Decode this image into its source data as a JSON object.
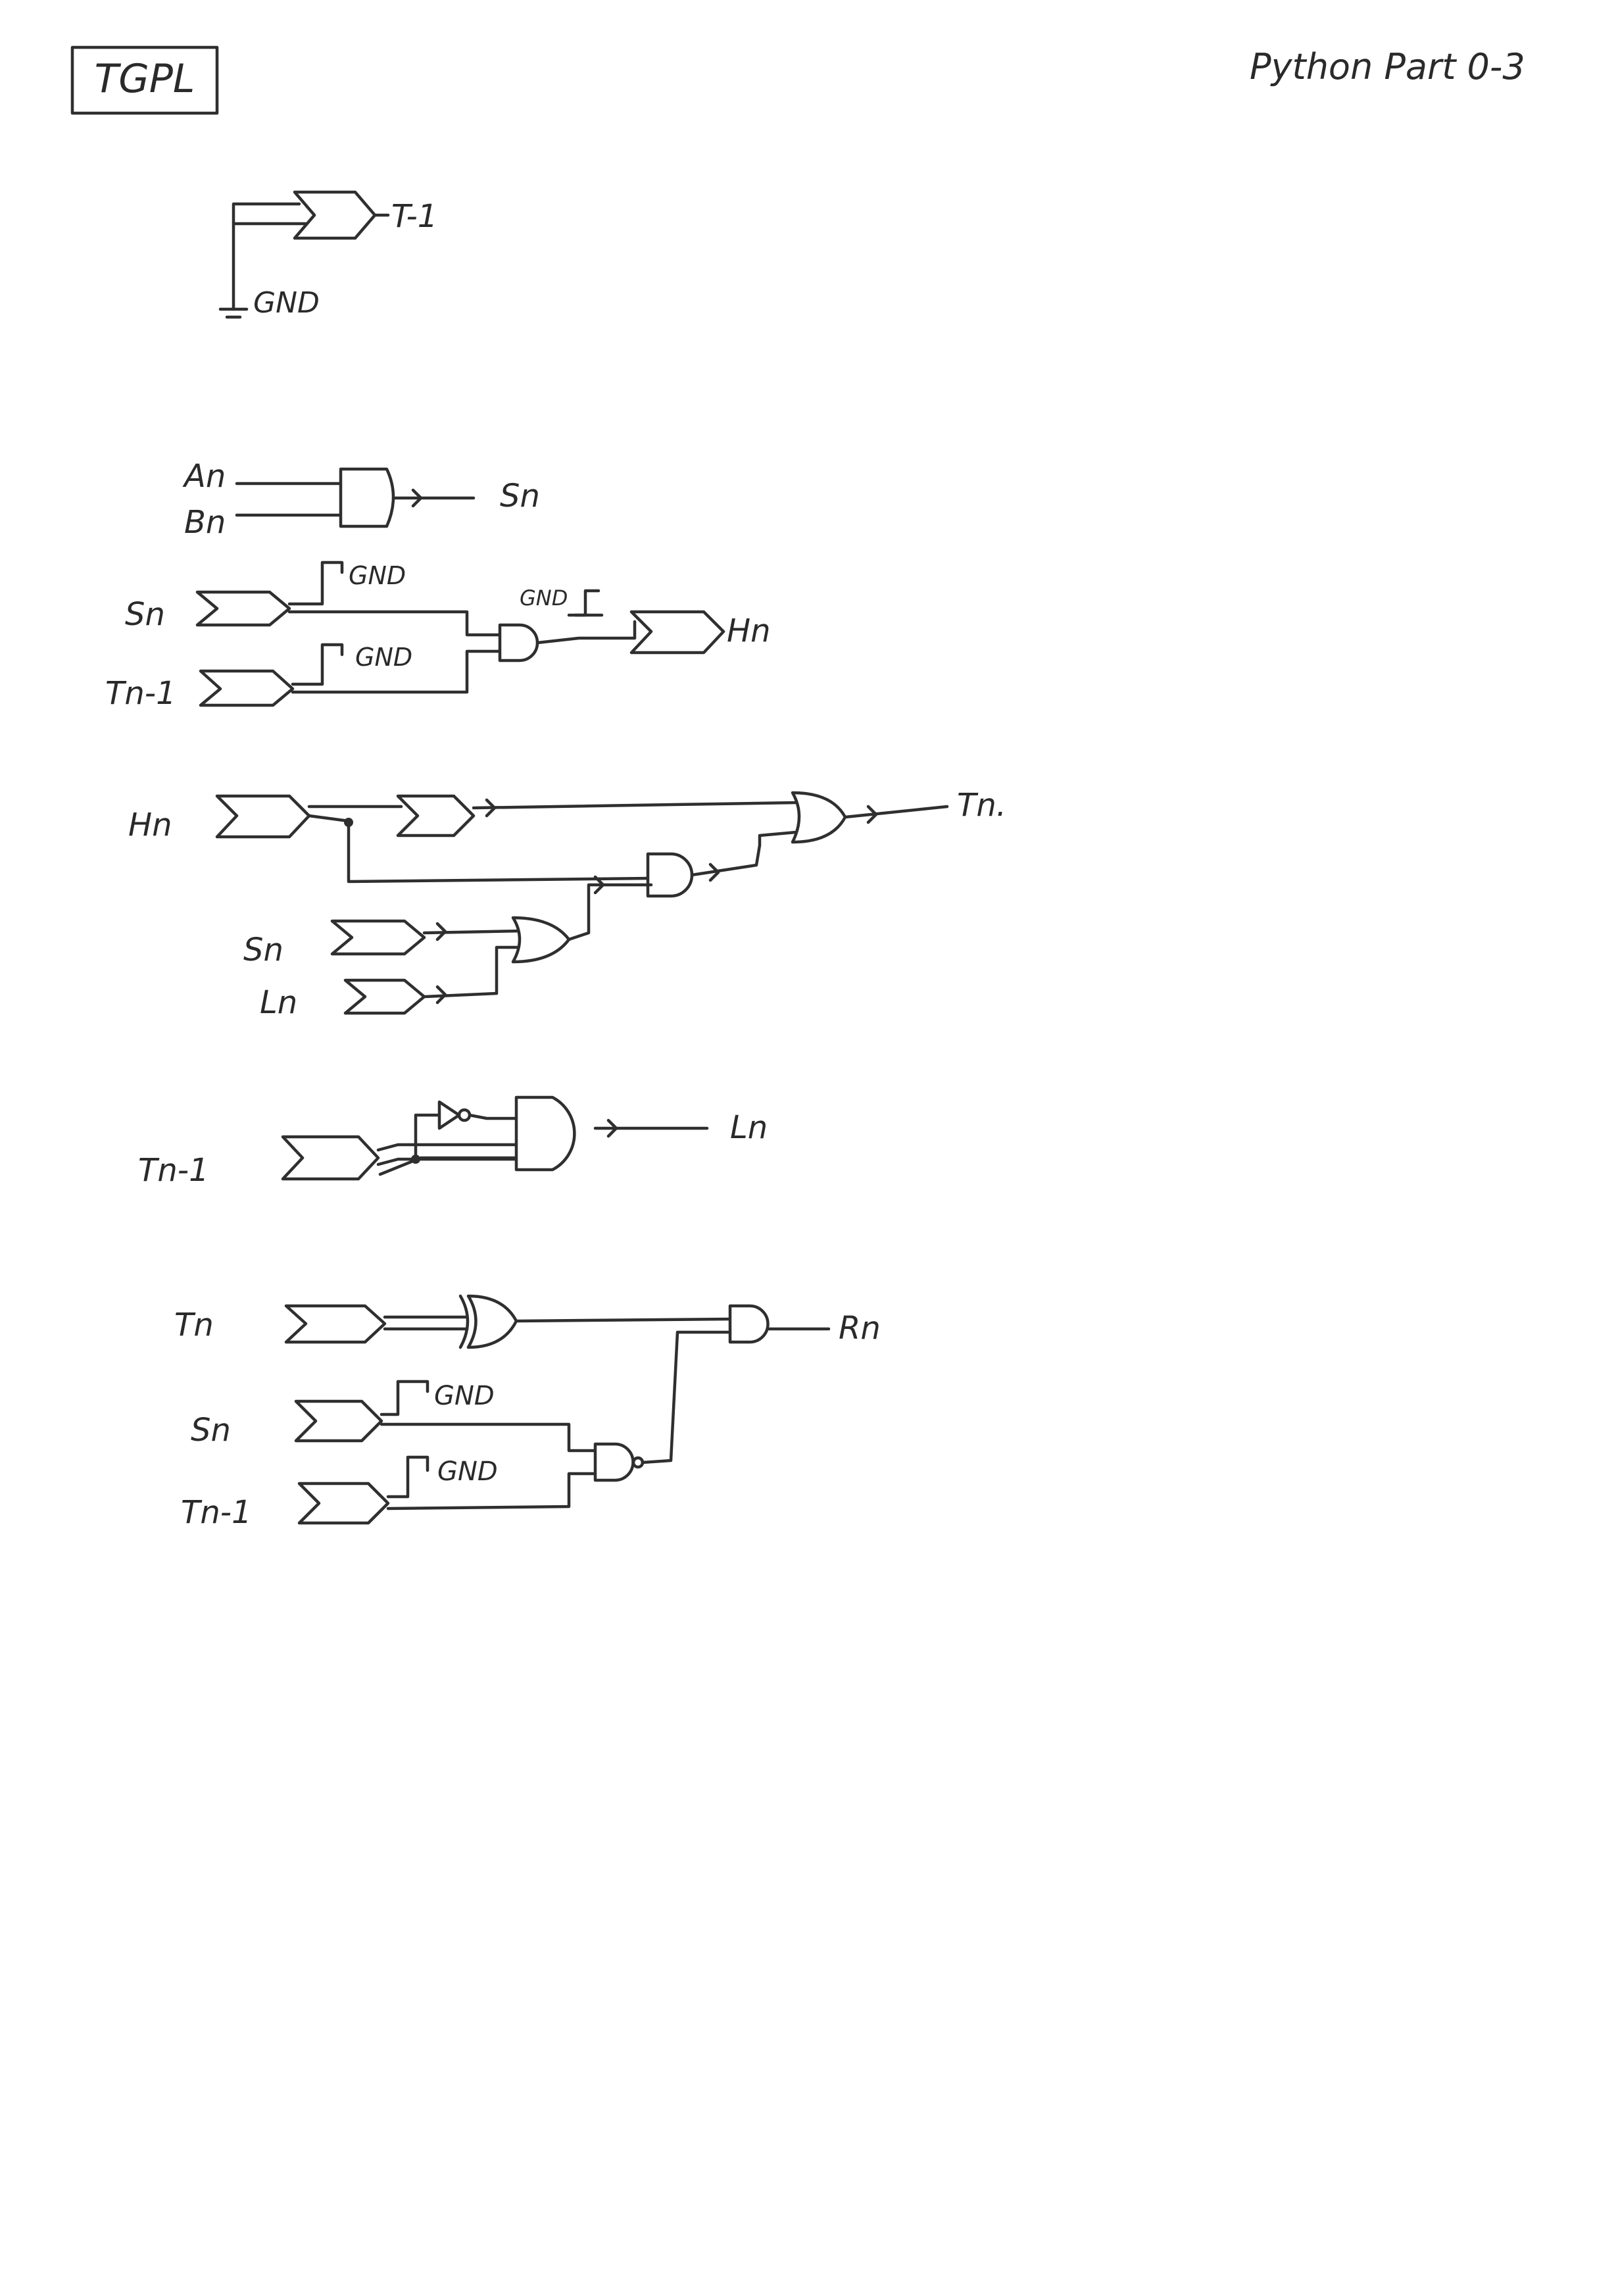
{
  "header": {
    "tag_label": "TGPL",
    "part_label": "Python Part 0-3"
  },
  "ground_label": "GND",
  "circuit1": {
    "out_label": "T-1"
  },
  "circuit2": {
    "in_a": "An",
    "in_b": "Bn",
    "out_label": "Sn"
  },
  "circuit3": {
    "in_s": "Sn",
    "in_t": "Tn-1",
    "out_label": "Hn"
  },
  "circuit4": {
    "in_h": "Hn",
    "in_s": "Sn",
    "in_l": "Ln",
    "out_label": "Tn."
  },
  "circuit5": {
    "in_t": "Tn-1",
    "out_label": "Ln"
  },
  "circuit6": {
    "in_t": "Tn",
    "in_s": "Sn",
    "in_t1": "Tn-1",
    "out_label": "Rn"
  }
}
